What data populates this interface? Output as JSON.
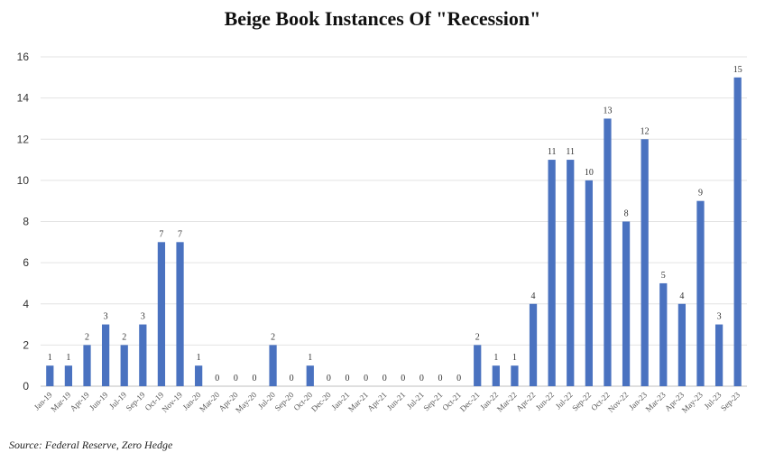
{
  "title": "Beige Book Instances Of  \"Recession\"",
  "source": "Source: Federal Reserve, Zero Hedge",
  "colors": {
    "bar": "#4a72c0",
    "grid": "#e3e3e3",
    "axis": "#bfbfbf"
  },
  "chart_data": {
    "type": "bar",
    "title": "Beige Book Instances Of  \"Recession\"",
    "xlabel": "",
    "ylabel": "",
    "ylim": [
      0,
      16
    ],
    "yticks": [
      0,
      2,
      4,
      6,
      8,
      10,
      12,
      14,
      16
    ],
    "grid": true,
    "legend": "none",
    "categories": [
      "Jan-19",
      "Mar-19",
      "Apr-19",
      "Jun-19",
      "Jul-19",
      "Sep-19",
      "Oct-19",
      "Nov-19",
      "Jan-20",
      "Mar-20",
      "Apr-20",
      "May-20",
      "Jul-20",
      "Sep-20",
      "Oct-20",
      "Dec-20",
      "Jan-21",
      "Mar-21",
      "Apr-21",
      "Jun-21",
      "Jul-21",
      "Sep-21",
      "Oct-21",
      "Dec-21",
      "Jan-22",
      "Mar-22",
      "Apr-22",
      "Jun-22",
      "Jul-22",
      "Sep-22",
      "Oct-22",
      "Nov-22",
      "Jan-23",
      "Mar-23",
      "Apr-23",
      "May-23",
      "Jul-23",
      "Sep-23"
    ],
    "values": [
      1,
      1,
      2,
      3,
      2,
      3,
      7,
      7,
      1,
      0,
      0,
      0,
      2,
      0,
      1,
      0,
      0,
      0,
      0,
      0,
      0,
      0,
      0,
      2,
      1,
      1,
      4,
      11,
      11,
      10,
      13,
      8,
      12,
      5,
      4,
      9,
      3,
      15
    ]
  }
}
